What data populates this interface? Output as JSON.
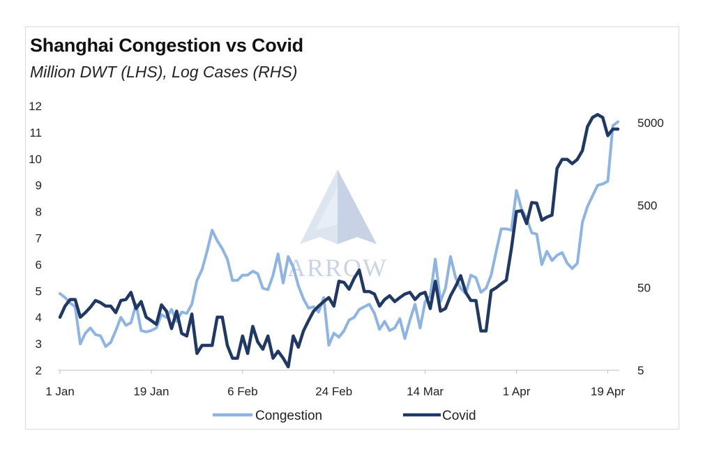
{
  "chart_data": {
    "type": "line",
    "title": "Shanghai Congestion vs Covid",
    "subtitle": "Million DWT (LHS), Log Cases (RHS)",
    "x_tick_labels": [
      "1 Jan",
      "19 Jan",
      "6 Feb",
      "24 Feb",
      "14 Mar",
      "1 Apr",
      "19 Apr"
    ],
    "x_tick_days": [
      1,
      19,
      37,
      55,
      73,
      91,
      109
    ],
    "y_left": {
      "ylim": [
        2,
        12
      ],
      "ticks": [
        2,
        3,
        4,
        5,
        6,
        7,
        8,
        9,
        10,
        11,
        12
      ]
    },
    "y_right": {
      "scale": "log",
      "ylim": [
        5,
        8000
      ],
      "ticks": [
        5,
        50,
        500,
        5000
      ]
    },
    "legend_position": "bottom",
    "grid": false,
    "watermark": "ARROW",
    "series": [
      {
        "name": "Congestion",
        "axis": "left",
        "color": "#8db4e2",
        "points": [
          [
            1,
            4.9
          ],
          [
            2,
            4.75
          ],
          [
            3,
            4.55
          ],
          [
            4,
            4.4
          ],
          [
            5,
            3.0
          ],
          [
            6,
            3.4
          ],
          [
            7,
            3.6
          ],
          [
            8,
            3.35
          ],
          [
            9,
            3.3
          ],
          [
            10,
            2.9
          ],
          [
            11,
            3.05
          ],
          [
            12,
            3.5
          ],
          [
            13,
            4.0
          ],
          [
            14,
            3.7
          ],
          [
            15,
            3.8
          ],
          [
            16,
            4.5
          ],
          [
            17,
            3.5
          ],
          [
            18,
            3.45
          ],
          [
            19,
            3.5
          ],
          [
            20,
            3.6
          ],
          [
            21,
            4.1
          ],
          [
            22,
            4.0
          ],
          [
            23,
            4.3
          ],
          [
            24,
            3.85
          ],
          [
            25,
            4.2
          ],
          [
            26,
            4.15
          ],
          [
            27,
            4.5
          ],
          [
            28,
            5.4
          ],
          [
            29,
            5.8
          ],
          [
            30,
            6.5
          ],
          [
            31,
            7.3
          ],
          [
            32,
            6.9
          ],
          [
            33,
            6.6
          ],
          [
            34,
            6.2
          ],
          [
            35,
            5.4
          ],
          [
            36,
            5.4
          ],
          [
            37,
            5.6
          ],
          [
            38,
            5.6
          ],
          [
            39,
            5.75
          ],
          [
            40,
            5.65
          ],
          [
            41,
            5.1
          ],
          [
            42,
            5.05
          ],
          [
            43,
            5.6
          ],
          [
            44,
            6.4
          ],
          [
            45,
            5.3
          ],
          [
            46,
            6.3
          ],
          [
            47,
            5.9
          ],
          [
            48,
            5.2
          ],
          [
            49,
            4.7
          ],
          [
            50,
            4.35
          ],
          [
            51,
            4.4
          ],
          [
            52,
            4.2
          ],
          [
            53,
            4.75
          ],
          [
            54,
            2.95
          ],
          [
            55,
            3.4
          ],
          [
            56,
            3.25
          ],
          [
            57,
            3.5
          ],
          [
            58,
            3.9
          ],
          [
            59,
            4.0
          ],
          [
            60,
            4.3
          ],
          [
            61,
            4.4
          ],
          [
            62,
            4.5
          ],
          [
            63,
            4.15
          ],
          [
            64,
            3.55
          ],
          [
            65,
            3.85
          ],
          [
            66,
            3.5
          ],
          [
            67,
            3.6
          ],
          [
            68,
            3.95
          ],
          [
            69,
            3.2
          ],
          [
            70,
            3.9
          ],
          [
            71,
            4.5
          ],
          [
            72,
            3.6
          ],
          [
            73,
            4.6
          ],
          [
            74,
            4.8
          ],
          [
            75,
            6.2
          ],
          [
            76,
            4.6
          ],
          [
            77,
            5.1
          ],
          [
            78,
            6.3
          ],
          [
            79,
            5.5
          ],
          [
            80,
            5.1
          ],
          [
            81,
            4.9
          ],
          [
            82,
            5.6
          ],
          [
            83,
            5.5
          ],
          [
            84,
            4.95
          ],
          [
            85,
            5.1
          ],
          [
            86,
            5.6
          ],
          [
            87,
            6.5
          ],
          [
            88,
            7.35
          ],
          [
            89,
            7.35
          ],
          [
            90,
            7.3
          ],
          [
            91,
            8.8
          ],
          [
            92,
            8.1
          ],
          [
            93,
            7.75
          ],
          [
            94,
            7.2
          ],
          [
            95,
            7.15
          ],
          [
            96,
            6.0
          ],
          [
            97,
            6.5
          ],
          [
            98,
            6.15
          ],
          [
            99,
            6.35
          ],
          [
            100,
            6.45
          ],
          [
            101,
            6.05
          ],
          [
            102,
            5.85
          ],
          [
            103,
            6.05
          ],
          [
            104,
            7.6
          ],
          [
            105,
            8.2
          ],
          [
            106,
            8.6
          ],
          [
            107,
            9.0
          ],
          [
            108,
            9.05
          ],
          [
            109,
            9.15
          ],
          [
            110,
            11.25
          ],
          [
            111,
            11.4
          ]
        ]
      },
      {
        "name": "Covid",
        "axis": "right",
        "color": "#1f3864",
        "points": [
          [
            1,
            22
          ],
          [
            2,
            30
          ],
          [
            3,
            36
          ],
          [
            4,
            36
          ],
          [
            5,
            22
          ],
          [
            6,
            25
          ],
          [
            7,
            29
          ],
          [
            8,
            35
          ],
          [
            9,
            33
          ],
          [
            10,
            30
          ],
          [
            11,
            30
          ],
          [
            12,
            25
          ],
          [
            13,
            35
          ],
          [
            14,
            36
          ],
          [
            15,
            44
          ],
          [
            16,
            28
          ],
          [
            17,
            34
          ],
          [
            18,
            22
          ],
          [
            19,
            20
          ],
          [
            20,
            18
          ],
          [
            21,
            31
          ],
          [
            22,
            26
          ],
          [
            23,
            16
          ],
          [
            24,
            26
          ],
          [
            25,
            14
          ],
          [
            26,
            13
          ],
          [
            27,
            24
          ],
          [
            28,
            8
          ],
          [
            29,
            10
          ],
          [
            30,
            10
          ],
          [
            31,
            10
          ],
          [
            32,
            22
          ],
          [
            33,
            22
          ],
          [
            34,
            10
          ],
          [
            35,
            7
          ],
          [
            36,
            7
          ],
          [
            37,
            13
          ],
          [
            38,
            8
          ],
          [
            39,
            17
          ],
          [
            40,
            11
          ],
          [
            41,
            9
          ],
          [
            42,
            13
          ],
          [
            43,
            7
          ],
          [
            44,
            8.5
          ],
          [
            45,
            7
          ],
          [
            46,
            5.5
          ],
          [
            47,
            13
          ],
          [
            48,
            9.5
          ],
          [
            49,
            15
          ],
          [
            50,
            20
          ],
          [
            51,
            26
          ],
          [
            52,
            30
          ],
          [
            53,
            34
          ],
          [
            54,
            38
          ],
          [
            55,
            30
          ],
          [
            56,
            60
          ],
          [
            57,
            58
          ],
          [
            58,
            48
          ],
          [
            59,
            65
          ],
          [
            60,
            82
          ],
          [
            61,
            45
          ],
          [
            62,
            45
          ],
          [
            63,
            42
          ],
          [
            64,
            30
          ],
          [
            65,
            36
          ],
          [
            66,
            40
          ],
          [
            67,
            34
          ],
          [
            68,
            38
          ],
          [
            69,
            42
          ],
          [
            70,
            44
          ],
          [
            71,
            36
          ],
          [
            72,
            42
          ],
          [
            73,
            44
          ],
          [
            74,
            28
          ],
          [
            75,
            60
          ],
          [
            76,
            26
          ],
          [
            77,
            28
          ],
          [
            78,
            40
          ],
          [
            79,
            52
          ],
          [
            80,
            70
          ],
          [
            81,
            44
          ],
          [
            82,
            35
          ],
          [
            83,
            35
          ],
          [
            84,
            15
          ],
          [
            85,
            15
          ],
          [
            86,
            46
          ],
          [
            87,
            50
          ],
          [
            88,
            56
          ],
          [
            89,
            62
          ],
          [
            90,
            150
          ],
          [
            91,
            420
          ],
          [
            92,
            430
          ],
          [
            93,
            300
          ],
          [
            94,
            540
          ],
          [
            95,
            530
          ],
          [
            96,
            330
          ],
          [
            97,
            360
          ],
          [
            98,
            380
          ],
          [
            99,
            1400
          ],
          [
            100,
            1800
          ],
          [
            101,
            1800
          ],
          [
            102,
            1600
          ],
          [
            103,
            1800
          ],
          [
            104,
            2300
          ],
          [
            105,
            4500
          ],
          [
            106,
            5800
          ],
          [
            107,
            6300
          ],
          [
            108,
            5800
          ],
          [
            109,
            3500
          ],
          [
            110,
            4200
          ],
          [
            111,
            4200
          ]
        ]
      }
    ]
  }
}
